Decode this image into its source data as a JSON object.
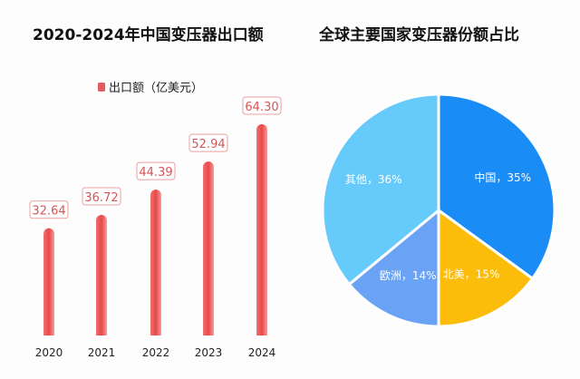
{
  "chart_data": [
    {
      "type": "bar",
      "title": "2020-2024年中国变压器出口额",
      "legend": "出口额（亿美元）",
      "categories": [
        "2020",
        "2021",
        "2022",
        "2023",
        "2024"
      ],
      "values": [
        32.64,
        36.72,
        44.39,
        52.94,
        64.3
      ],
      "value_labels": [
        "32.64",
        "36.72",
        "44.39",
        "52.94",
        "64.30"
      ],
      "ylim": [
        0,
        70
      ],
      "grid": false,
      "color": "#e85a5a"
    },
    {
      "type": "pie",
      "title": "全球主要国家变压器份额占比",
      "slices": [
        {
          "label": "中国，35%",
          "value": 35,
          "color": "#1a8cf5"
        },
        {
          "label": "北美，15%",
          "value": 15,
          "color": "#fbbd0a"
        },
        {
          "label": "欧洲，14%",
          "value": 14,
          "color": "#6aa3f5"
        },
        {
          "label": "其他，36%",
          "value": 36,
          "color": "#66cbfb"
        }
      ]
    }
  ]
}
